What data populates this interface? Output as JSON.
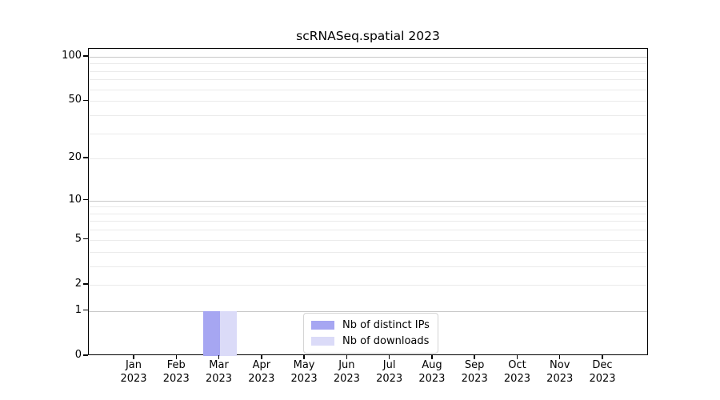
{
  "chart_data": {
    "type": "bar",
    "title": "scRNASeq.spatial 2023",
    "categories": [
      "Jan",
      "Feb",
      "Mar",
      "Apr",
      "May",
      "Jun",
      "Jul",
      "Aug",
      "Sep",
      "Oct",
      "Nov",
      "Dec"
    ],
    "category_year": "2023",
    "series": [
      {
        "name": "Nb of distinct IPs",
        "color": "#a6a6f2",
        "values": [
          0,
          0,
          1,
          0,
          0,
          0,
          0,
          0,
          0,
          0,
          0,
          0
        ]
      },
      {
        "name": "Nb of downloads",
        "color": "#dbdbf8",
        "values": [
          0,
          0,
          1,
          0,
          0,
          0,
          0,
          0,
          0,
          0,
          0,
          0
        ]
      }
    ],
    "yscale": "log1p",
    "ylim": [
      0,
      113
    ],
    "y_ticks": [
      0,
      1,
      2,
      5,
      10,
      20,
      50,
      100
    ],
    "grid": {
      "major_values": [
        1,
        10,
        100
      ],
      "major_color": "#c8c8c8",
      "minor_values": [
        2,
        3,
        4,
        5,
        6,
        7,
        8,
        9,
        20,
        30,
        40,
        50,
        60,
        70,
        80,
        90
      ],
      "minor_color": "#ebebeb"
    },
    "legend": {
      "position": "lower center"
    },
    "axis_color": "#000000",
    "background": "#ffffff"
  }
}
